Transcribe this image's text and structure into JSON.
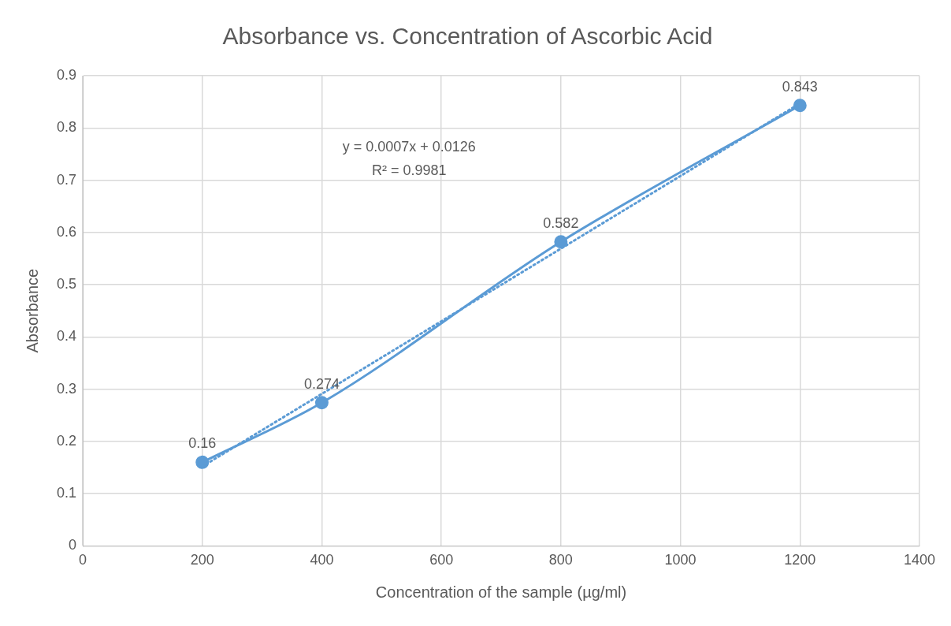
{
  "chart_data": {
    "type": "line",
    "title": "Absorbance vs. Concentration of Ascorbic Acid",
    "xlabel": "Concentration of the sample (µg/ml)",
    "ylabel": "Absorbance",
    "x": [
      200,
      400,
      800,
      1200
    ],
    "series": [
      {
        "type": "line",
        "color": "#5b9bd5",
        "values": [
          0.16,
          0.274,
          0.582,
          0.843
        ],
        "marker": "circle",
        "line_style": "solid",
        "data_labels": true
      },
      {
        "type": "line",
        "color": "#5b9bd5",
        "x": [
          200,
          1200
        ],
        "values": [
          0.152,
          0.847
        ],
        "marker": "none",
        "line_style": "dotted"
      }
    ],
    "xlim": [
      0,
      1400
    ],
    "xticks": [
      0,
      200,
      400,
      600,
      800,
      1000,
      1200,
      1400
    ],
    "ylim": [
      0,
      0.9
    ],
    "yticks": [
      0,
      0.1,
      0.2,
      0.3,
      0.4,
      0.5,
      0.6,
      0.7,
      0.8,
      0.9
    ],
    "grid": true,
    "legend": false,
    "annotations": [
      "y = 0.0007x + 0.0126",
      "R² = 0.9981"
    ]
  }
}
